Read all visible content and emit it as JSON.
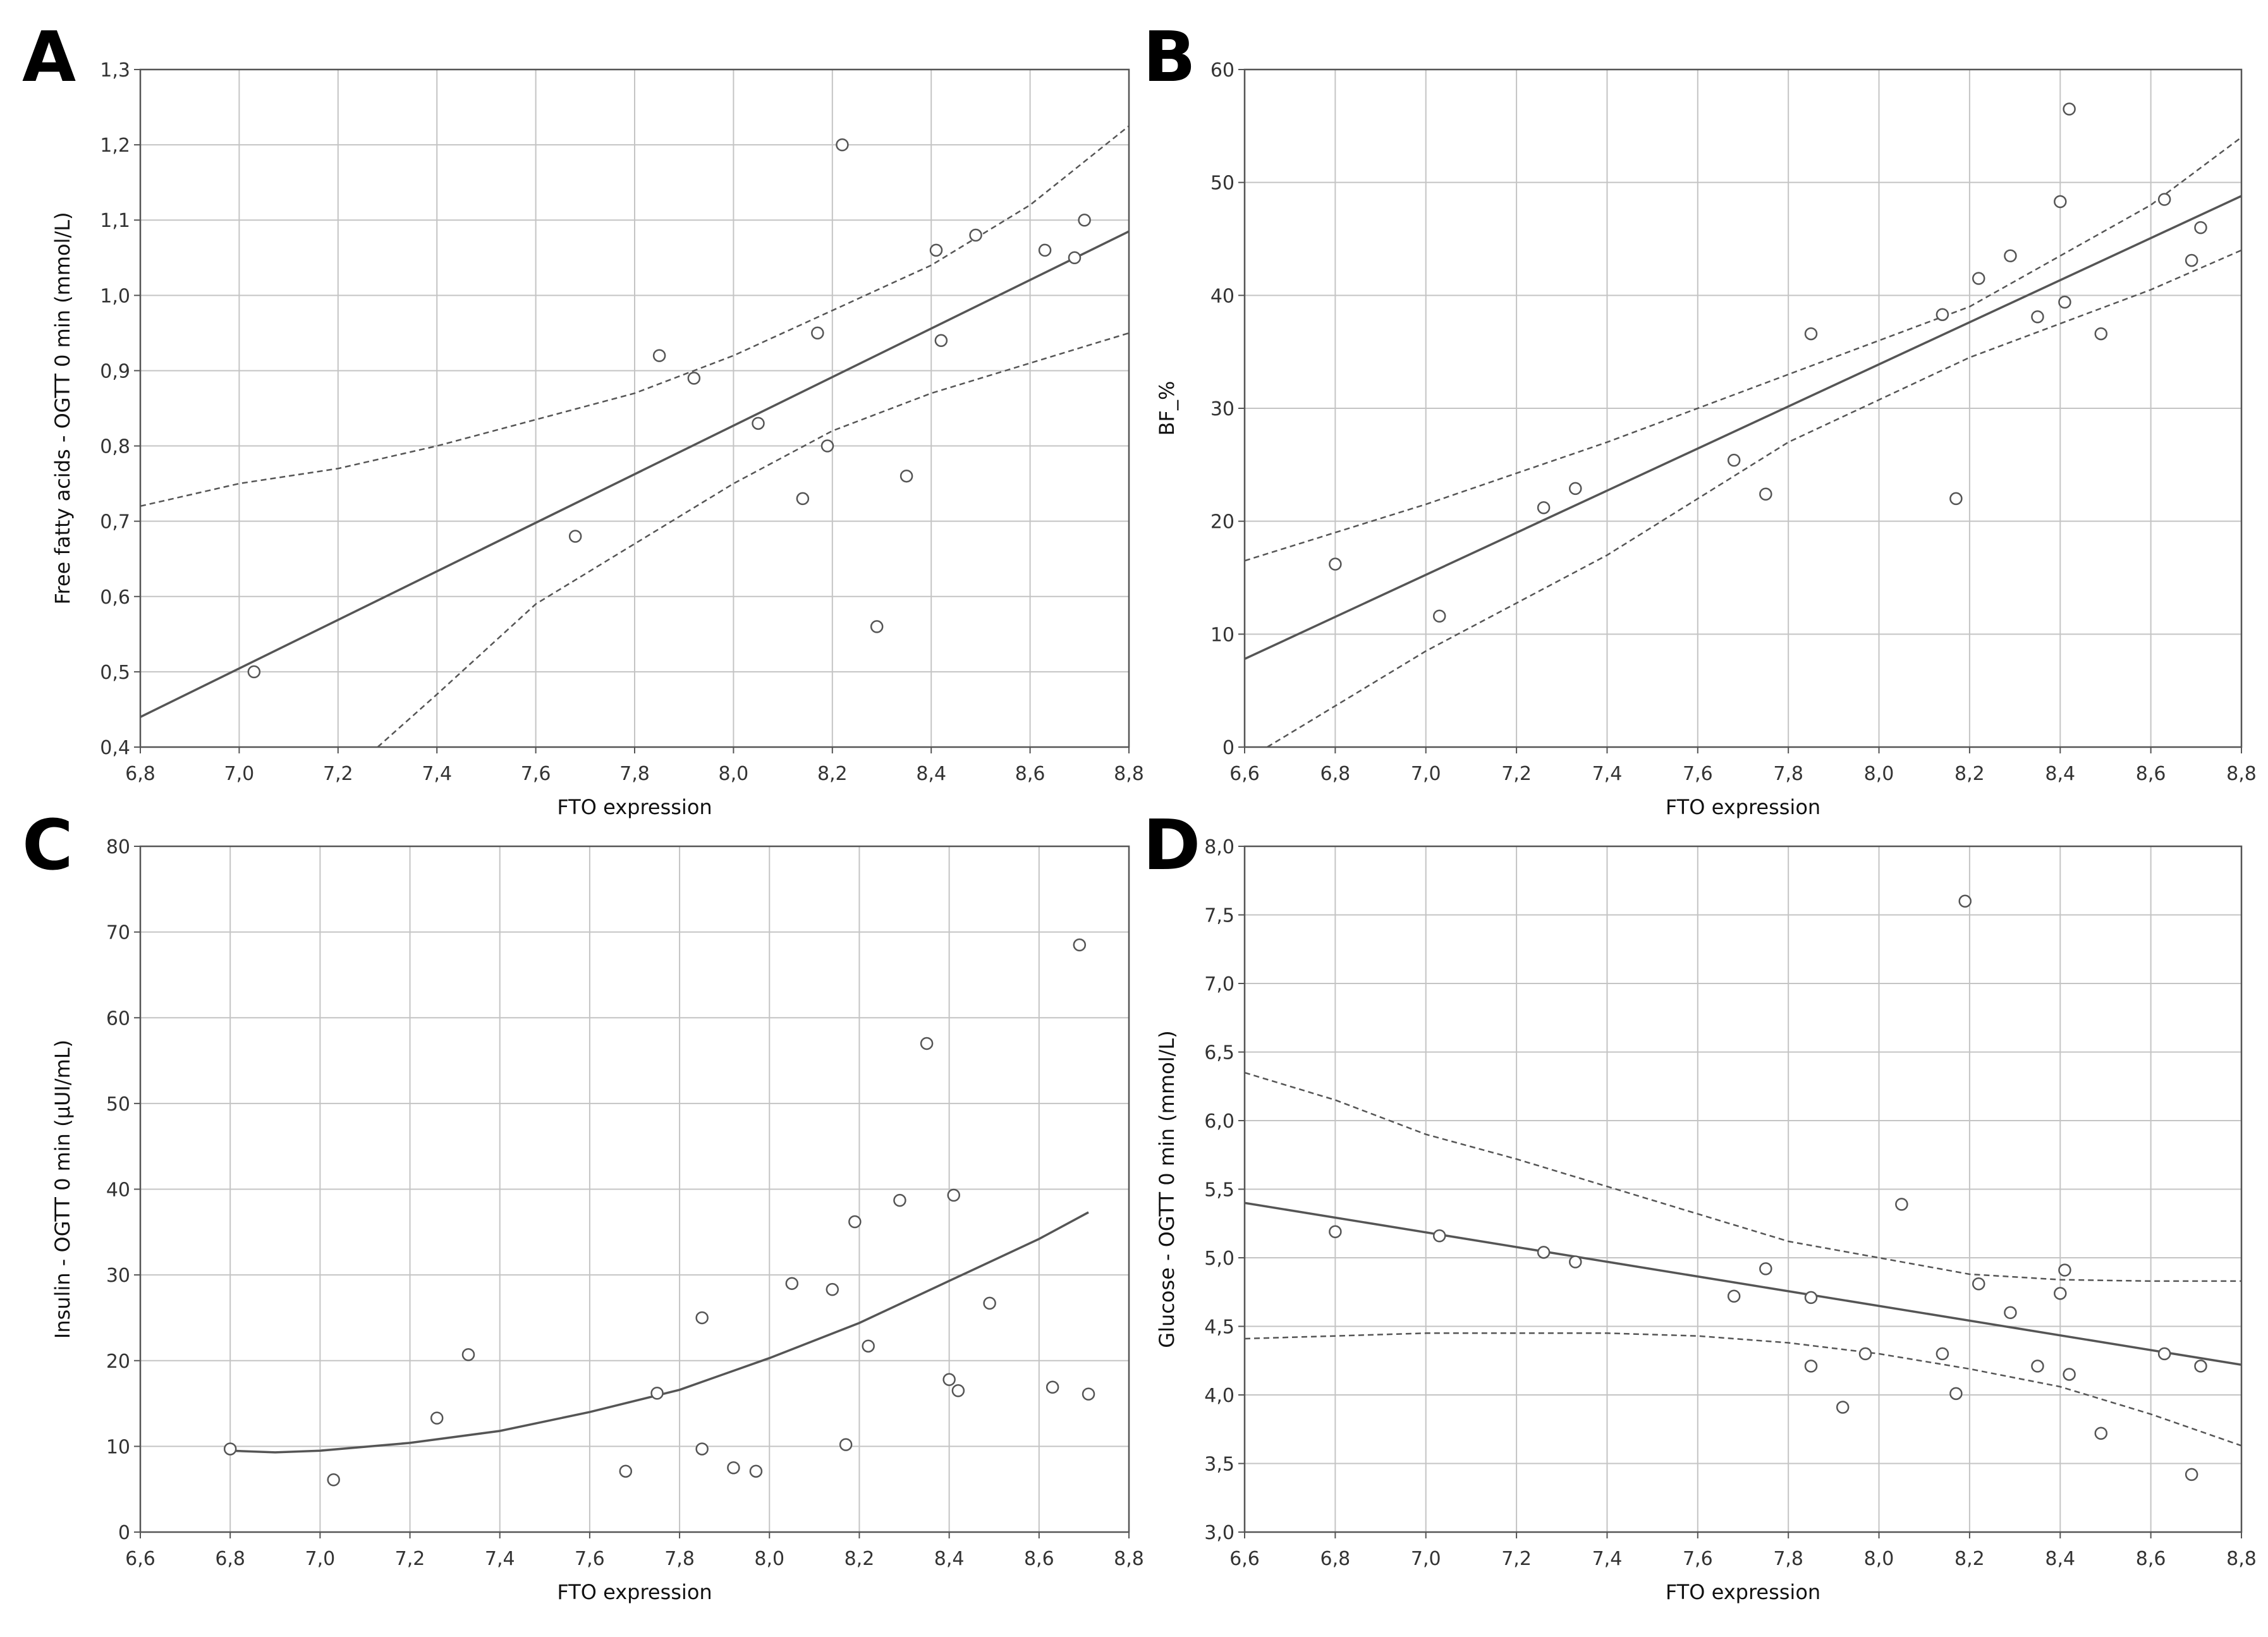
{
  "colors": {
    "grid": "#c4c4c4",
    "frame": "#555555",
    "line": "#555555",
    "point": "#555555",
    "text": "#222222"
  },
  "chart_data": [
    {
      "panel": "A",
      "type": "scatter",
      "title": "",
      "xlabel": "FTO expression",
      "ylabel": "Free fatty acids - OGTT 0 min (mmol/L)",
      "xlim": [
        6.8,
        8.8
      ],
      "ylim": [
        0.4,
        1.3
      ],
      "grid": true,
      "xticks": [
        "6,8",
        "7,0",
        "7,2",
        "7,4",
        "7,6",
        "7,8",
        "8,0",
        "8,2",
        "8,4",
        "8,6",
        "8,8"
      ],
      "yticks": [
        "0,4",
        "0,5",
        "0,6",
        "0,7",
        "0,8",
        "0,9",
        "1,0",
        "1,1",
        "1,2",
        "1,3"
      ],
      "points": [
        [
          7.03,
          0.5
        ],
        [
          7.68,
          0.68
        ],
        [
          7.85,
          0.92
        ],
        [
          7.92,
          0.89
        ],
        [
          8.05,
          0.83
        ],
        [
          8.14,
          0.73
        ],
        [
          8.17,
          0.95
        ],
        [
          8.19,
          0.8
        ],
        [
          8.22,
          1.2
        ],
        [
          8.29,
          0.56
        ],
        [
          8.35,
          0.76
        ],
        [
          8.41,
          1.06
        ],
        [
          8.42,
          0.94
        ],
        [
          8.49,
          1.08
        ],
        [
          8.63,
          1.06
        ],
        [
          8.69,
          1.05
        ],
        [
          8.71,
          1.1
        ]
      ],
      "fit": {
        "kind": "linear",
        "points": [
          [
            6.8,
            0.44
          ],
          [
            8.8,
            1.085
          ]
        ]
      },
      "ci_upper": [
        [
          6.8,
          0.72
        ],
        [
          7.0,
          0.75
        ],
        [
          7.2,
          0.77
        ],
        [
          7.4,
          0.8
        ],
        [
          7.6,
          0.835
        ],
        [
          7.8,
          0.87
        ],
        [
          8.0,
          0.92
        ],
        [
          8.2,
          0.98
        ],
        [
          8.4,
          1.04
        ],
        [
          8.6,
          1.12
        ],
        [
          8.8,
          1.225
        ]
      ],
      "ci_lower": [
        [
          7.28,
          0.4
        ],
        [
          7.4,
          0.47
        ],
        [
          7.6,
          0.59
        ],
        [
          7.8,
          0.67
        ],
        [
          8.0,
          0.75
        ],
        [
          8.2,
          0.82
        ],
        [
          8.4,
          0.87
        ],
        [
          8.6,
          0.91
        ],
        [
          8.8,
          0.95
        ]
      ]
    },
    {
      "panel": "B",
      "type": "scatter",
      "title": "",
      "xlabel": "FTO expression",
      "ylabel": "BF_%",
      "xlim": [
        6.6,
        8.8
      ],
      "ylim": [
        0,
        60
      ],
      "grid": true,
      "xticks": [
        "6,6",
        "6,8",
        "7,0",
        "7,2",
        "7,4",
        "7,6",
        "7,8",
        "8,0",
        "8,2",
        "8,4",
        "8,6",
        "8,8"
      ],
      "yticks": [
        "0",
        "10",
        "20",
        "30",
        "40",
        "50",
        "60"
      ],
      "points": [
        [
          6.8,
          16.2
        ],
        [
          7.03,
          11.6
        ],
        [
          7.26,
          21.2
        ],
        [
          7.33,
          22.9
        ],
        [
          7.68,
          25.4
        ],
        [
          7.75,
          22.4
        ],
        [
          7.85,
          36.6
        ],
        [
          8.14,
          38.3
        ],
        [
          8.17,
          22.0
        ],
        [
          8.22,
          41.5
        ],
        [
          8.29,
          43.5
        ],
        [
          8.35,
          38.1
        ],
        [
          8.4,
          48.3
        ],
        [
          8.41,
          39.4
        ],
        [
          8.42,
          56.5
        ],
        [
          8.49,
          36.6
        ],
        [
          8.63,
          48.5
        ],
        [
          8.69,
          43.1
        ],
        [
          8.71,
          46.0
        ]
      ],
      "fit": {
        "kind": "linear",
        "points": [
          [
            6.6,
            7.8
          ],
          [
            8.8,
            48.8
          ]
        ]
      },
      "ci_upper": [
        [
          6.6,
          16.5
        ],
        [
          7.0,
          21.5
        ],
        [
          7.4,
          27.0
        ],
        [
          7.8,
          33.0
        ],
        [
          8.2,
          39.0
        ],
        [
          8.6,
          48.0
        ],
        [
          8.8,
          54.0
        ]
      ],
      "ci_lower": [
        [
          6.65,
          0
        ],
        [
          7.0,
          8.5
        ],
        [
          7.4,
          17.0
        ],
        [
          7.8,
          27.0
        ],
        [
          8.2,
          34.5
        ],
        [
          8.6,
          40.5
        ],
        [
          8.8,
          44.0
        ]
      ]
    },
    {
      "panel": "C",
      "type": "scatter",
      "title": "",
      "xlabel": "FTO expression",
      "ylabel": "Insulin - OGTT 0 min (µUI/mL)",
      "xlim": [
        6.6,
        8.8
      ],
      "ylim": [
        0,
        80
      ],
      "grid": true,
      "xticks": [
        "6,6",
        "6,8",
        "7,0",
        "7,2",
        "7,4",
        "7,6",
        "7,8",
        "8,0",
        "8,2",
        "8,4",
        "8,6",
        "8,8"
      ],
      "yticks": [
        "0",
        "10",
        "20",
        "30",
        "40",
        "50",
        "60",
        "70",
        "80"
      ],
      "points": [
        [
          6.8,
          9.7
        ],
        [
          7.03,
          6.1
        ],
        [
          7.26,
          13.3
        ],
        [
          7.33,
          20.7
        ],
        [
          7.68,
          7.1
        ],
        [
          7.75,
          16.2
        ],
        [
          7.85,
          25.0
        ],
        [
          7.85,
          9.7
        ],
        [
          7.92,
          7.5
        ],
        [
          7.97,
          7.1
        ],
        [
          8.05,
          29.0
        ],
        [
          8.14,
          28.3
        ],
        [
          8.17,
          10.2
        ],
        [
          8.19,
          36.2
        ],
        [
          8.22,
          21.7
        ],
        [
          8.29,
          38.7
        ],
        [
          8.35,
          57.0
        ],
        [
          8.4,
          17.8
        ],
        [
          8.41,
          39.3
        ],
        [
          8.42,
          16.5
        ],
        [
          8.49,
          26.7
        ],
        [
          8.63,
          16.9
        ],
        [
          8.69,
          68.5
        ],
        [
          8.71,
          16.1
        ]
      ],
      "fit": {
        "kind": "quadratic",
        "points": [
          [
            6.8,
            9.5
          ],
          [
            6.9,
            9.3
          ],
          [
            7.0,
            9.5
          ],
          [
            7.2,
            10.4
          ],
          [
            7.4,
            11.8
          ],
          [
            7.6,
            14.0
          ],
          [
            7.8,
            16.6
          ],
          [
            8.0,
            20.3
          ],
          [
            8.2,
            24.4
          ],
          [
            8.4,
            29.3
          ],
          [
            8.6,
            34.2
          ],
          [
            8.71,
            37.3
          ]
        ]
      }
    },
    {
      "panel": "D",
      "type": "scatter",
      "title": "",
      "xlabel": "FTO expression",
      "ylabel": "Glucose - OGTT 0 min (mmol/L)",
      "xlim": [
        6.6,
        8.8
      ],
      "ylim": [
        3.0,
        8.0
      ],
      "grid": true,
      "xticks": [
        "6,6",
        "6,8",
        "7,0",
        "7,2",
        "7,4",
        "7,6",
        "7,8",
        "8,0",
        "8,2",
        "8,4",
        "8,6",
        "8,8"
      ],
      "yticks": [
        "3,0",
        "3,5",
        "4,0",
        "4,5",
        "5,0",
        "5,5",
        "6,0",
        "6,5",
        "7,0",
        "7,5",
        "8,0"
      ],
      "points": [
        [
          6.8,
          5.19
        ],
        [
          7.03,
          5.16
        ],
        [
          7.26,
          5.04
        ],
        [
          7.33,
          4.97
        ],
        [
          7.68,
          4.72
        ],
        [
          7.75,
          4.92
        ],
        [
          7.85,
          4.71
        ],
        [
          7.85,
          4.21
        ],
        [
          7.92,
          3.91
        ],
        [
          7.97,
          4.3
        ],
        [
          8.05,
          5.39
        ],
        [
          8.14,
          4.3
        ],
        [
          8.17,
          4.01
        ],
        [
          8.19,
          7.6
        ],
        [
          8.22,
          4.81
        ],
        [
          8.29,
          4.6
        ],
        [
          8.35,
          4.21
        ],
        [
          8.4,
          4.74
        ],
        [
          8.41,
          4.91
        ],
        [
          8.42,
          4.15
        ],
        [
          8.49,
          3.72
        ],
        [
          8.63,
          4.3
        ],
        [
          8.69,
          3.42
        ],
        [
          8.71,
          4.21
        ]
      ],
      "fit": {
        "kind": "linear",
        "points": [
          [
            6.6,
            5.4
          ],
          [
            8.8,
            4.22
          ]
        ]
      },
      "ci_upper": [
        [
          6.6,
          6.35
        ],
        [
          6.8,
          6.15
        ],
        [
          7.0,
          5.9
        ],
        [
          7.2,
          5.72
        ],
        [
          7.4,
          5.52
        ],
        [
          7.6,
          5.32
        ],
        [
          7.8,
          5.12
        ],
        [
          8.0,
          5.0
        ],
        [
          8.2,
          4.88
        ],
        [
          8.4,
          4.84
        ],
        [
          8.6,
          4.83
        ],
        [
          8.8,
          4.83
        ]
      ],
      "ci_lower": [
        [
          6.6,
          4.41
        ],
        [
          6.8,
          4.43
        ],
        [
          7.0,
          4.45
        ],
        [
          7.2,
          4.45
        ],
        [
          7.4,
          4.45
        ],
        [
          7.6,
          4.43
        ],
        [
          7.8,
          4.38
        ],
        [
          8.0,
          4.3
        ],
        [
          8.2,
          4.19
        ],
        [
          8.4,
          4.06
        ],
        [
          8.6,
          3.86
        ],
        [
          8.8,
          3.63
        ]
      ]
    }
  ]
}
